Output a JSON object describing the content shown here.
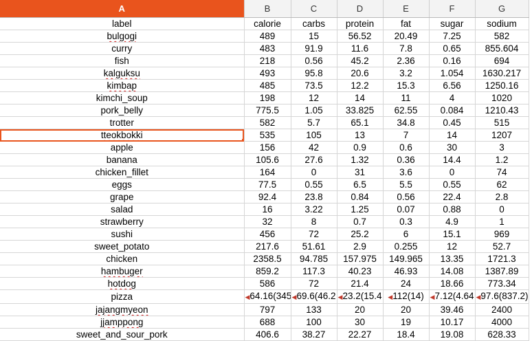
{
  "columns": [
    "A",
    "B",
    "C",
    "D",
    "E",
    "F",
    "G"
  ],
  "selected_column": "A",
  "header_row": [
    "label",
    "calorie",
    "carbs",
    "protein",
    "fat",
    "sugar",
    "sodium"
  ],
  "rows": [
    {
      "label": "bulgogi",
      "values": [
        "489",
        "15",
        "56.52",
        "20.49",
        "7.25",
        "582"
      ]
    },
    {
      "label": "curry",
      "values": [
        "483",
        "91.9",
        "11.6",
        "7.8",
        "0.65",
        "855.604"
      ]
    },
    {
      "label": "fish",
      "values": [
        "218",
        "0.56",
        "45.2",
        "2.36",
        "0.16",
        "694"
      ]
    },
    {
      "label": "kalguksu",
      "values": [
        "493",
        "95.8",
        "20.6",
        "3.2",
        "1.054",
        "1630.217"
      ]
    },
    {
      "label": "kimbap",
      "values": [
        "485",
        "73.5",
        "12.2",
        "15.3",
        "6.56",
        "1250.16"
      ]
    },
    {
      "label": "kimchi_soup",
      "values": [
        "198",
        "12",
        "14",
        "11",
        "4",
        "1020"
      ]
    },
    {
      "label": "pork_belly",
      "values": [
        "775.5",
        "1.05",
        "33.825",
        "62.55",
        "0.084",
        "1210.43"
      ]
    },
    {
      "label": "trotter",
      "values": [
        "582",
        "5.7",
        "65.1",
        "34.8",
        "0.45",
        "515"
      ]
    },
    {
      "label": "tteokbokki",
      "values": [
        "535",
        "105",
        "13",
        "7",
        "14",
        "1207"
      ]
    },
    {
      "label": "apple",
      "values": [
        "156",
        "42",
        "0.9",
        "0.6",
        "30",
        "3"
      ]
    },
    {
      "label": "banana",
      "values": [
        "105.6",
        "27.6",
        "1.32",
        "0.36",
        "14.4",
        "1.2"
      ]
    },
    {
      "label": "chicken_fillet",
      "values": [
        "164",
        "0",
        "31",
        "3.6",
        "0",
        "74"
      ]
    },
    {
      "label": "eggs",
      "values": [
        "77.5",
        "0.55",
        "6.5",
        "5.5",
        "0.55",
        "62"
      ]
    },
    {
      "label": "grape",
      "values": [
        "92.4",
        "23.8",
        "0.84",
        "0.56",
        "22.4",
        "2.8"
      ]
    },
    {
      "label": "salad",
      "values": [
        "16",
        "3.22",
        "1.25",
        "0.07",
        "0.88",
        "0"
      ]
    },
    {
      "label": "strawberry",
      "values": [
        "32",
        "8",
        "0.7",
        "0.3",
        "4.9",
        "1"
      ]
    },
    {
      "label": "sushi",
      "values": [
        "456",
        "72",
        "25.2",
        "6",
        "15.1",
        "969"
      ]
    },
    {
      "label": "sweet_potato",
      "values": [
        "217.6",
        "51.61",
        "2.9",
        "0.255",
        "12",
        "52.7"
      ]
    },
    {
      "label": "chicken",
      "values": [
        "2358.5",
        "94.785",
        "157.975",
        "149.965",
        "13.35",
        "1721.3"
      ]
    },
    {
      "label": "hambuger",
      "values": [
        "859.2",
        "117.3",
        "40.23",
        "46.93",
        "14.08",
        "1387.89"
      ]
    },
    {
      "label": "hotdog",
      "values": [
        "586",
        "72",
        "21.4",
        "24",
        "18.66",
        "773.34"
      ]
    },
    {
      "label": "pizza",
      "values": [
        "64.16(345",
        "69.6(46.2",
        "23.2(15.4",
        "112(14)",
        "7.12(4.64",
        "97.6(837.2)"
      ]
    },
    {
      "label": "jajangmyeon",
      "values": [
        "797",
        "133",
        "20",
        "20",
        "39.46",
        "2400"
      ]
    },
    {
      "label": "jjamppong",
      "values": [
        "688",
        "100",
        "30",
        "19",
        "10.17",
        "4000"
      ]
    },
    {
      "label": "sweet_and_sour_pork",
      "values": [
        "406.6",
        "38.27",
        "22.27",
        "18.4",
        "19.08",
        "628.33"
      ]
    }
  ],
  "active_cell_label": "tteokbokki",
  "squiggled_labels": [
    "bulgogi",
    "kalguksu",
    "kimbap",
    "tteokbokki",
    "hambuger",
    "hotdog",
    "jajangmyeon",
    "jjamppong"
  ],
  "truncated_row_label": "pizza",
  "colors": {
    "accent": "#e9541d",
    "header_bg": "#f3f3f3",
    "grid": "#d6d6d6",
    "spell_underline": "#d21f1f"
  }
}
